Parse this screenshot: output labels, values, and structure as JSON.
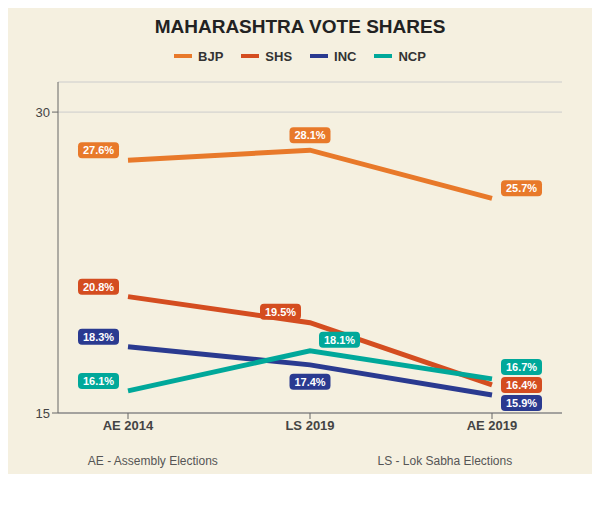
{
  "chart_data": {
    "type": "line",
    "title": "MAHARASHTRA VOTE SHARES",
    "categories": [
      "AE 2014",
      "LS 2019",
      "AE 2019"
    ],
    "series": [
      {
        "name": "BJP",
        "color": "#e8792a",
        "values": [
          27.6,
          28.1,
          25.7
        ],
        "value_labels": [
          "27.6%",
          "28.1%",
          "25.7%"
        ]
      },
      {
        "name": "SHS",
        "color": "#d44d20",
        "values": [
          20.8,
          19.5,
          16.4
        ],
        "value_labels": [
          "20.8%",
          "19.5%",
          "16.4%"
        ]
      },
      {
        "name": "INC",
        "color": "#2a3a90",
        "values": [
          18.3,
          17.4,
          15.9
        ],
        "value_labels": [
          "18.3%",
          "17.4%",
          "15.9%"
        ]
      },
      {
        "name": "NCP",
        "color": "#00a89a",
        "values": [
          16.1,
          18.1,
          16.7
        ],
        "value_labels": [
          "16.1%",
          "18.1%",
          "16.7%"
        ]
      }
    ],
    "ylim": [
      15,
      31.5
    ],
    "yticks": [
      15,
      30
    ],
    "grid": true,
    "legend": "top",
    "data_labels": true,
    "annotations": [
      "AE - Assembly Elections",
      "LS - Lok Sabha Elections"
    ]
  }
}
